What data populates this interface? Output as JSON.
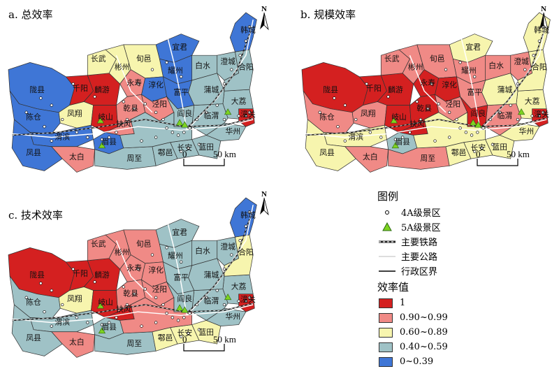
{
  "panels": [
    {
      "id": "a",
      "title": "a. 总效率"
    },
    {
      "id": "b",
      "title": "b. 规模效率"
    },
    {
      "id": "c",
      "title": "c. 技术效率"
    }
  ],
  "north_label": "N",
  "scale_bar": {
    "zero": "0",
    "distance": "50 km"
  },
  "legend": {
    "title": "图例",
    "items": [
      {
        "symbol": "circle-point-icon",
        "label": "4A级景区"
      },
      {
        "symbol": "green-triangle-icon",
        "label": "5A级景区"
      },
      {
        "symbol": "railway-line-icon",
        "label": "主要铁路"
      },
      {
        "symbol": "highway-line-icon",
        "label": "主要公路"
      },
      {
        "symbol": "boundary-line-icon",
        "label": "行政区界"
      }
    ],
    "value_title": "效率值",
    "classes": [
      {
        "label": "1",
        "color": "#d42020"
      },
      {
        "label": "0.90~0.99",
        "color": "#f08a86"
      },
      {
        "label": "0.60~0.89",
        "color": "#f7f5ae"
      },
      {
        "label": "0.40~0.59",
        "color": "#9fc2c6"
      },
      {
        "label": "0~0.39",
        "color": "#3f76d6"
      }
    ]
  },
  "regions": [
    {
      "name": "陇县",
      "a": "#3f76d6",
      "b": "#d42020",
      "c": "#d42020"
    },
    {
      "name": "千阳",
      "a": "#d42020",
      "b": "#d42020",
      "c": "#d42020"
    },
    {
      "name": "麟游",
      "a": "#d42020",
      "b": "#d42020",
      "c": "#d42020"
    },
    {
      "name": "凤翔",
      "a": "#f7f5ae",
      "b": "#f08a86",
      "c": "#f7f5ae"
    },
    {
      "name": "岐山",
      "a": "#d42020",
      "b": "#d42020",
      "c": "#d42020"
    },
    {
      "name": "陈仓",
      "a": "#3f76d6",
      "b": "#f08a86",
      "c": "#9fc2c6"
    },
    {
      "name": "渭滨",
      "a": "#3f76d6",
      "b": "#f7f5ae",
      "c": "#9fc2c6"
    },
    {
      "name": "凤县",
      "a": "#3f76d6",
      "b": "#f7f5ae",
      "c": "#9fc2c6"
    },
    {
      "name": "太白",
      "a": "#f08a86",
      "b": "#f08a86",
      "c": "#f08a86"
    },
    {
      "name": "眉县",
      "a": "#3f76d6",
      "b": "#9fc2c6",
      "c": "#9fc2c6"
    },
    {
      "name": "周至",
      "a": "#9fc2c6",
      "b": "#f08a86",
      "c": "#9fc2c6"
    },
    {
      "name": "鄠邑",
      "a": "#9fc2c6",
      "b": "#f7f5ae",
      "c": "#f7f5ae"
    },
    {
      "name": "长安",
      "a": "#9fc2c6",
      "b": "#f7f5ae",
      "c": "#f7f5ae"
    },
    {
      "name": "蓝田",
      "a": "#9fc2c6",
      "b": "#f7f5ae",
      "c": "#f7f5ae"
    },
    {
      "name": "华州",
      "a": "#9fc2c6",
      "b": "#f7f5ae",
      "c": "#9fc2c6"
    },
    {
      "name": "大荔",
      "a": "#9fc2c6",
      "b": "#f7f5ae",
      "c": "#9fc2c6"
    },
    {
      "name": "临渭",
      "a": "#9fc2c6",
      "b": "#f08a86",
      "c": "#9fc2c6"
    },
    {
      "name": "蒲城",
      "a": "#9fc2c6",
      "b": "#f7f5ae",
      "c": "#9fc2c6"
    },
    {
      "name": "澄城",
      "a": "#9fc2c6",
      "b": "#f08a86",
      "c": "#9fc2c6"
    },
    {
      "name": "白水",
      "a": "#9fc2c6",
      "b": "#f08a86",
      "c": "#9fc2c6"
    },
    {
      "name": "合阳",
      "a": "#9fc2c6",
      "b": "#f7f5ae",
      "c": "#f7f5ae"
    },
    {
      "name": "韩城",
      "a": "#3f76d6",
      "b": "#f7f5ae",
      "c": "#3f76d6"
    },
    {
      "name": "宜君",
      "a": "#3f76d6",
      "b": "#f7f5ae",
      "c": "#9fc2c6"
    },
    {
      "name": "耀州",
      "a": "#3f76d6",
      "b": "#f08a86",
      "c": "#9fc2c6"
    },
    {
      "name": "富平",
      "a": "#3f76d6",
      "b": "#f08a86",
      "c": "#9fc2c6"
    },
    {
      "name": "旬邑",
      "a": "#f7f5ae",
      "b": "#f08a86",
      "c": "#f08a86"
    },
    {
      "name": "长武",
      "a": "#f7f5ae",
      "b": "#f08a86",
      "c": "#f08a86"
    },
    {
      "name": "彬州",
      "a": "#f7f5ae",
      "b": "#f08a86",
      "c": "#f08a86"
    },
    {
      "name": "永寿",
      "a": "#f08a86",
      "b": "#d42020",
      "c": "#f08a86"
    },
    {
      "name": "淳化",
      "a": "#3f76d6",
      "b": "#d42020",
      "c": "#f08a86"
    },
    {
      "name": "乾县",
      "a": "#f08a86",
      "b": "#d42020",
      "c": "#f08a86"
    },
    {
      "name": "扶风",
      "a": "#f08a86",
      "b": "#d42020",
      "c": "#d42020"
    },
    {
      "name": "泾阳",
      "a": "#f08a86",
      "b": "#f08a86",
      "c": "#f08a86"
    },
    {
      "name": "阎良",
      "a": "#9fc2c6",
      "b": "#d42020",
      "c": "#9fc2c6"
    },
    {
      "name": "潼关",
      "a": "#d42020",
      "b": "#d42020",
      "c": "#d42020"
    }
  ]
}
